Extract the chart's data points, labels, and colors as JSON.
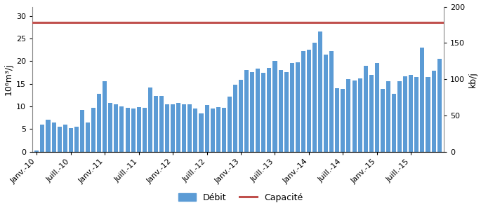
{
  "ylabel_left": "10⁶m³/j",
  "ylabel_right": "kb/j",
  "capacity_value": 28.5,
  "ylim_left": [
    0,
    32
  ],
  "ylim_right": [
    0,
    200
  ],
  "yticks_left": [
    0,
    5,
    10,
    15,
    20,
    25,
    30
  ],
  "yticks_right": [
    0,
    50,
    100,
    150,
    200
  ],
  "bar_color": "#5B9BD5",
  "capacity_color": "#C0504D",
  "bar_values": [
    0.3,
    6.0,
    7.0,
    6.5,
    5.5,
    6.0,
    5.2,
    5.5,
    9.2,
    6.5,
    9.7,
    12.8,
    15.6,
    10.8,
    10.5,
    10.0,
    9.7,
    9.5,
    9.8,
    9.7,
    14.2,
    12.3,
    12.3,
    10.5,
    10.5,
    10.8,
    10.5,
    10.5,
    9.5,
    8.5,
    10.3,
    9.5,
    9.8,
    9.7,
    12.2,
    14.8,
    15.9,
    18.0,
    17.5,
    18.4,
    17.4,
    18.5,
    20.0,
    18.0,
    17.5,
    19.5,
    19.8,
    22.2,
    22.5,
    24.0,
    26.5,
    21.5,
    22.2,
    14.0,
    13.8,
    16.0,
    15.7,
    16.2,
    19.0,
    17.0,
    19.5,
    13.8,
    15.5,
    12.7,
    15.5,
    16.7,
    17.0,
    16.5,
    23.0,
    16.5,
    17.8,
    20.5
  ],
  "x_tick_labels": [
    "Janv.-10",
    "Juill.-10",
    "Janv.-11",
    "Juill.-11",
    "Janv.-12",
    "Juill.-12",
    "Janv.-13",
    "Juill.-13",
    "Janv.-14",
    "Juill.-14",
    "Janv.-15",
    "Juill.-15"
  ],
  "x_tick_positions": [
    0,
    6,
    12,
    18,
    24,
    30,
    36,
    42,
    48,
    54,
    60,
    66
  ],
  "legend_debit": "Débit",
  "legend_capacite": "Capacité",
  "background_color": "#ffffff"
}
